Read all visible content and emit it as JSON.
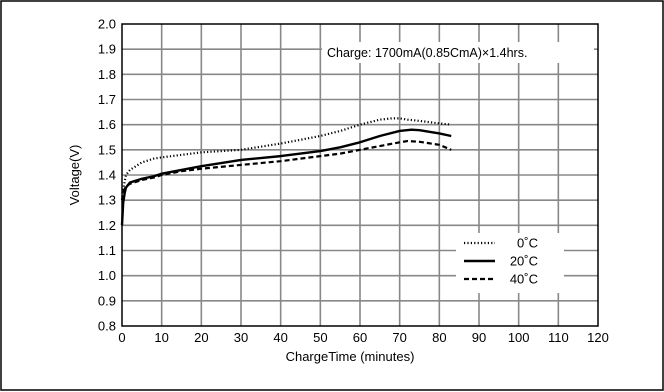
{
  "chart_data": {
    "type": "line",
    "title": "",
    "annotation": "Charge: 1700mA(0.85CmA)×1.4hrs.",
    "xlabel": "ChargeTime (minutes)",
    "ylabel": "Voltage(V)",
    "xlim": [
      0,
      120
    ],
    "ylim": [
      0.8,
      2.0
    ],
    "x_ticks": [
      0,
      10,
      20,
      30,
      40,
      50,
      60,
      70,
      80,
      90,
      100,
      110,
      120
    ],
    "y_ticks": [
      "0.8",
      "0.9",
      "1.0",
      "1.1",
      "1.2",
      "1.3",
      "1.4",
      "1.5",
      "1.6",
      "1.7",
      "1.8",
      "1.9",
      "2.0"
    ],
    "grid": true,
    "legend_position": "bottom-right",
    "series": [
      {
        "name": "0˚C",
        "style": "dotted",
        "x": [
          0,
          0.5,
          1,
          2,
          3,
          5,
          8,
          10,
          15,
          20,
          30,
          40,
          50,
          55,
          60,
          65,
          68,
          70,
          72,
          75,
          80,
          83
        ],
        "y": [
          1.3,
          1.36,
          1.4,
          1.42,
          1.43,
          1.45,
          1.465,
          1.47,
          1.48,
          1.49,
          1.5,
          1.525,
          1.555,
          1.575,
          1.6,
          1.62,
          1.625,
          1.625,
          1.62,
          1.615,
          1.605,
          1.6
        ]
      },
      {
        "name": "20˚C",
        "style": "solid",
        "x": [
          0,
          0.3,
          0.7,
          1,
          2,
          3,
          5,
          8,
          10,
          15,
          20,
          30,
          40,
          50,
          55,
          60,
          65,
          70,
          73,
          75,
          80,
          83
        ],
        "y": [
          1.2,
          1.29,
          1.33,
          1.35,
          1.37,
          1.375,
          1.385,
          1.395,
          1.405,
          1.42,
          1.435,
          1.46,
          1.475,
          1.495,
          1.51,
          1.53,
          1.555,
          1.575,
          1.58,
          1.578,
          1.565,
          1.555
        ]
      },
      {
        "name": "40˚C",
        "style": "dashed",
        "x": [
          0,
          0.5,
          1,
          2,
          3,
          5,
          8,
          10,
          15,
          20,
          30,
          40,
          50,
          55,
          60,
          65,
          70,
          72,
          75,
          80,
          83
        ],
        "y": [
          1.3,
          1.34,
          1.355,
          1.365,
          1.37,
          1.38,
          1.39,
          1.4,
          1.415,
          1.425,
          1.44,
          1.455,
          1.475,
          1.485,
          1.5,
          1.515,
          1.53,
          1.535,
          1.532,
          1.52,
          1.5
        ]
      }
    ]
  }
}
